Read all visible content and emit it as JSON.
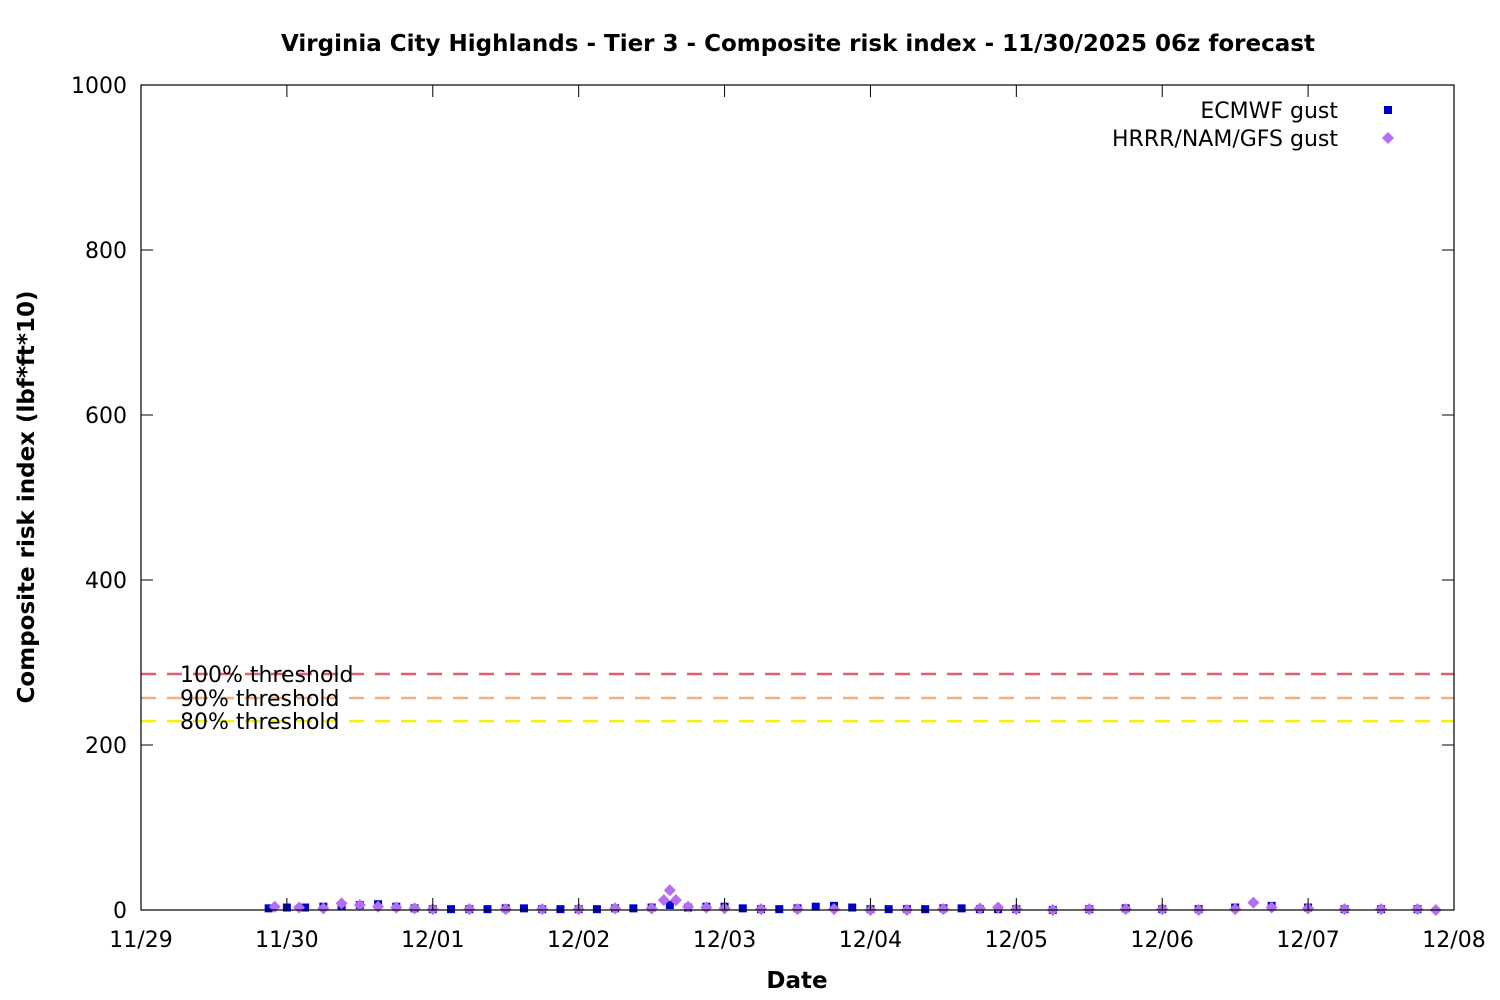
{
  "chart_data": {
    "type": "scatter",
    "title": "Virginia City Highlands - Tier 3 - Composite risk index - 11/30/2025 06z forecast",
    "xlabel": "Date",
    "ylabel": "Composite risk index (lbf*ft*10)",
    "x_range": [
      "2025-11-29T00:00",
      "2025-12-08T00:00"
    ],
    "x_ticks": [
      "11/29",
      "11/30",
      "12/01",
      "12/02",
      "12/03",
      "12/04",
      "12/05",
      "12/06",
      "12/07",
      "12/08"
    ],
    "ylim": [
      0,
      1000
    ],
    "y_ticks": [
      0,
      200,
      400,
      600,
      800,
      1000
    ],
    "legend_position": "top-right",
    "thresholds": [
      {
        "label": "100% threshold",
        "value": 286,
        "color": "#e0606e"
      },
      {
        "label": "90% threshold",
        "value": 257,
        "color": "#f2b07e"
      },
      {
        "label": "80% threshold",
        "value": 229,
        "color": "#f5f20a"
      }
    ],
    "series": [
      {
        "name": "ECMWF gust",
        "color": "#0000cc",
        "marker": "square",
        "points": [
          [
            "2025-11-29T21:00",
            2
          ],
          [
            "2025-11-30T00:00",
            3
          ],
          [
            "2025-11-30T03:00",
            3
          ],
          [
            "2025-11-30T06:00",
            4
          ],
          [
            "2025-11-30T09:00",
            5
          ],
          [
            "2025-11-30T12:00",
            6
          ],
          [
            "2025-11-30T15:00",
            7
          ],
          [
            "2025-11-30T18:00",
            4
          ],
          [
            "2025-11-30T21:00",
            2
          ],
          [
            "2025-12-01T00:00",
            1
          ],
          [
            "2025-12-01T03:00",
            1
          ],
          [
            "2025-12-01T06:00",
            1
          ],
          [
            "2025-12-01T09:00",
            1
          ],
          [
            "2025-12-01T12:00",
            2
          ],
          [
            "2025-12-01T15:00",
            2
          ],
          [
            "2025-12-01T18:00",
            1
          ],
          [
            "2025-12-01T21:00",
            1
          ],
          [
            "2025-12-02T00:00",
            1
          ],
          [
            "2025-12-02T03:00",
            1
          ],
          [
            "2025-12-02T06:00",
            2
          ],
          [
            "2025-12-02T09:00",
            2
          ],
          [
            "2025-12-02T12:00",
            3
          ],
          [
            "2025-12-02T15:00",
            6
          ],
          [
            "2025-12-02T18:00",
            3
          ],
          [
            "2025-12-02T21:00",
            4
          ],
          [
            "2025-12-03T00:00",
            4
          ],
          [
            "2025-12-03T03:00",
            2
          ],
          [
            "2025-12-03T06:00",
            1
          ],
          [
            "2025-12-03T09:00",
            1
          ],
          [
            "2025-12-03T12:00",
            2
          ],
          [
            "2025-12-03T15:00",
            4
          ],
          [
            "2025-12-03T18:00",
            5
          ],
          [
            "2025-12-03T21:00",
            3
          ],
          [
            "2025-12-04T00:00",
            1
          ],
          [
            "2025-12-04T03:00",
            1
          ],
          [
            "2025-12-04T06:00",
            1
          ],
          [
            "2025-12-04T09:00",
            1
          ],
          [
            "2025-12-04T12:00",
            2
          ],
          [
            "2025-12-04T15:00",
            2
          ],
          [
            "2025-12-04T18:00",
            1
          ],
          [
            "2025-12-04T21:00",
            1
          ],
          [
            "2025-12-05T00:00",
            1
          ],
          [
            "2025-12-05T06:00",
            0
          ],
          [
            "2025-12-05T12:00",
            1
          ],
          [
            "2025-12-05T18:00",
            2
          ],
          [
            "2025-12-06T00:00",
            1
          ],
          [
            "2025-12-06T06:00",
            1
          ],
          [
            "2025-12-06T12:00",
            3
          ],
          [
            "2025-12-06T18:00",
            5
          ],
          [
            "2025-12-07T00:00",
            3
          ],
          [
            "2025-12-07T06:00",
            1
          ],
          [
            "2025-12-07T12:00",
            1
          ],
          [
            "2025-12-07T18:00",
            1
          ]
        ]
      },
      {
        "name": "HRRR/NAM/GFS gust",
        "color": "#b36ef2",
        "marker": "diamond",
        "points": [
          [
            "2025-11-29T22:00",
            4
          ],
          [
            "2025-11-30T02:00",
            3
          ],
          [
            "2025-11-30T06:00",
            2
          ],
          [
            "2025-11-30T09:00",
            8
          ],
          [
            "2025-11-30T12:00",
            6
          ],
          [
            "2025-11-30T15:00",
            4
          ],
          [
            "2025-11-30T18:00",
            3
          ],
          [
            "2025-11-30T21:00",
            2
          ],
          [
            "2025-12-01T00:00",
            1
          ],
          [
            "2025-12-01T06:00",
            1
          ],
          [
            "2025-12-01T12:00",
            1
          ],
          [
            "2025-12-01T18:00",
            1
          ],
          [
            "2025-12-02T00:00",
            1
          ],
          [
            "2025-12-02T06:00",
            2
          ],
          [
            "2025-12-02T12:00",
            2
          ],
          [
            "2025-12-02T14:00",
            12
          ],
          [
            "2025-12-02T15:00",
            24
          ],
          [
            "2025-12-02T16:00",
            12
          ],
          [
            "2025-12-02T18:00",
            4
          ],
          [
            "2025-12-02T21:00",
            3
          ],
          [
            "2025-12-03T00:00",
            2
          ],
          [
            "2025-12-03T06:00",
            1
          ],
          [
            "2025-12-03T12:00",
            1
          ],
          [
            "2025-12-03T18:00",
            1
          ],
          [
            "2025-12-04T00:00",
            0
          ],
          [
            "2025-12-04T06:00",
            0
          ],
          [
            "2025-12-04T12:00",
            1
          ],
          [
            "2025-12-04T18:00",
            2
          ],
          [
            "2025-12-04T21:00",
            3
          ],
          [
            "2025-12-05T00:00",
            1
          ],
          [
            "2025-12-05T06:00",
            0
          ],
          [
            "2025-12-05T12:00",
            1
          ],
          [
            "2025-12-05T18:00",
            1
          ],
          [
            "2025-12-06T00:00",
            1
          ],
          [
            "2025-12-06T06:00",
            0
          ],
          [
            "2025-12-06T12:00",
            1
          ],
          [
            "2025-12-06T15:00",
            9
          ],
          [
            "2025-12-06T18:00",
            3
          ],
          [
            "2025-12-07T00:00",
            2
          ],
          [
            "2025-12-07T06:00",
            1
          ],
          [
            "2025-12-07T12:00",
            1
          ],
          [
            "2025-12-07T18:00",
            1
          ],
          [
            "2025-12-07T21:00",
            0
          ]
        ]
      }
    ]
  }
}
